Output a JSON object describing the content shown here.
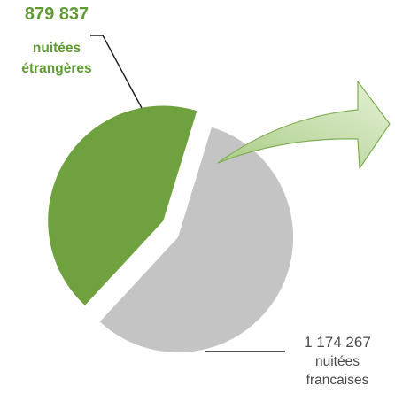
{
  "chart_data": {
    "type": "pie",
    "title": "",
    "slices": [
      {
        "value_label": "879 837",
        "value": 879837,
        "line1": "nuitées",
        "line2": "étrangères",
        "color": "#70a13f",
        "exploded": true
      },
      {
        "value_label": "1 174 267",
        "value": 1174267,
        "line1": "nuitées",
        "line2": "francaises",
        "color": "#c4c4c4",
        "exploded": false
      }
    ],
    "label_color_green": "#5f9a33",
    "label_color_gray": "#4a4a4a",
    "arrow_fill_light": "#e4f0d5",
    "arrow_fill_dark": "#a9cc86",
    "arrow_stroke": "#7fae52"
  }
}
